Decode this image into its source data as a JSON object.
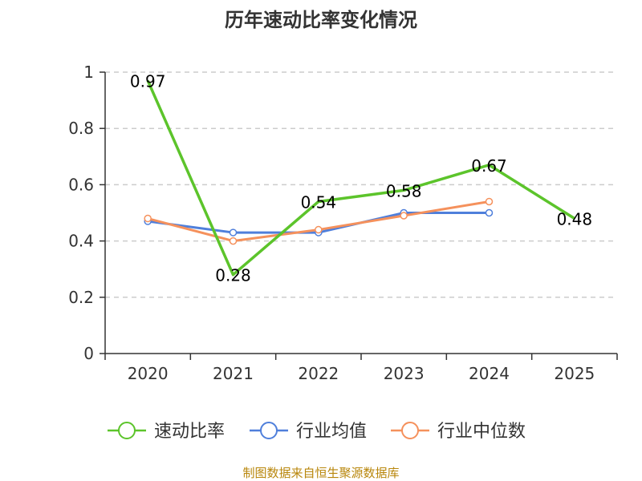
{
  "chart_data": {
    "type": "line",
    "title": "历年速动比率变化情况",
    "categories": [
      "2020",
      "2021",
      "2022",
      "2023",
      "2024",
      "2025"
    ],
    "ylim": [
      0,
      1
    ],
    "yticks": [
      "0",
      "0.2",
      "0.4",
      "0.6",
      "0.8",
      "1"
    ],
    "grid": true,
    "legend_position": "bottom",
    "series": [
      {
        "name": "速动比率",
        "color": "#5cc42b",
        "values": [
          0.97,
          0.28,
          0.54,
          0.58,
          0.67,
          0.48
        ],
        "labels": [
          "0.97",
          "0.28",
          "0.54",
          "0.58",
          "0.67",
          "0.48"
        ]
      },
      {
        "name": "行业均值",
        "color": "#4f7fdb",
        "values": [
          0.47,
          0.43,
          0.43,
          0.5,
          0.5,
          null
        ]
      },
      {
        "name": "行业中位数",
        "color": "#f5915c",
        "values": [
          0.48,
          0.4,
          0.44,
          0.49,
          0.54,
          null
        ]
      }
    ]
  },
  "footer": {
    "source": "制图数据来自恒生聚源数据库"
  }
}
